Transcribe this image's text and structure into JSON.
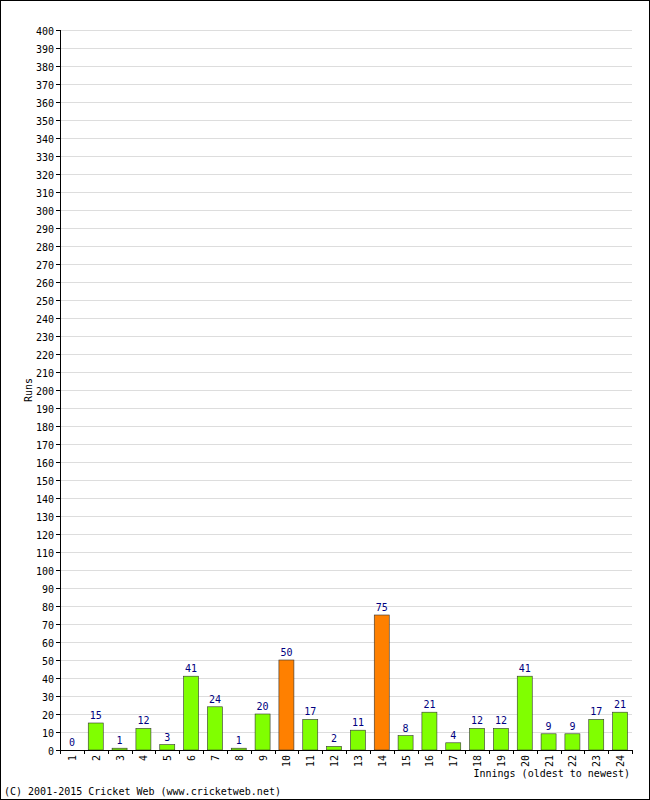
{
  "chart_data": {
    "type": "bar",
    "x_label": "Innings (oldest to newest)",
    "y_label": "Runs",
    "annotations": [
      "(C) 2001-2015 Cricket Web (www.cricketweb.net)"
    ],
    "categories": [
      "1",
      "2",
      "3",
      "4",
      "5",
      "6",
      "7",
      "8",
      "9",
      "10",
      "11",
      "12",
      "13",
      "14",
      "15",
      "16",
      "17",
      "18",
      "19",
      "20",
      "21",
      "22",
      "23",
      "24"
    ],
    "values": [
      0,
      15,
      1,
      12,
      3,
      41,
      24,
      1,
      20,
      50,
      17,
      2,
      11,
      75,
      8,
      21,
      4,
      12,
      12,
      41,
      9,
      9,
      17,
      21
    ],
    "colors": [
      "#80ff00",
      "#80ff00",
      "#80ff00",
      "#80ff00",
      "#80ff00",
      "#80ff00",
      "#80ff00",
      "#80ff00",
      "#80ff00",
      "#ff8000",
      "#80ff00",
      "#80ff00",
      "#80ff00",
      "#ff8000",
      "#80ff00",
      "#80ff00",
      "#80ff00",
      "#80ff00",
      "#80ff00",
      "#80ff00",
      "#80ff00",
      "#80ff00",
      "#80ff00",
      "#80ff00"
    ],
    "ylim": [
      0,
      400
    ],
    "yticks": [
      0,
      10,
      20,
      30,
      40,
      50,
      60,
      70,
      80,
      90,
      100,
      110,
      120,
      130,
      140,
      150,
      160,
      170,
      180,
      190,
      200,
      210,
      220,
      230,
      240,
      250,
      260,
      270,
      280,
      290,
      300,
      310,
      320,
      330,
      340,
      350,
      360,
      370,
      380,
      390,
      400
    ],
    "grid": true,
    "data_labels": true
  }
}
